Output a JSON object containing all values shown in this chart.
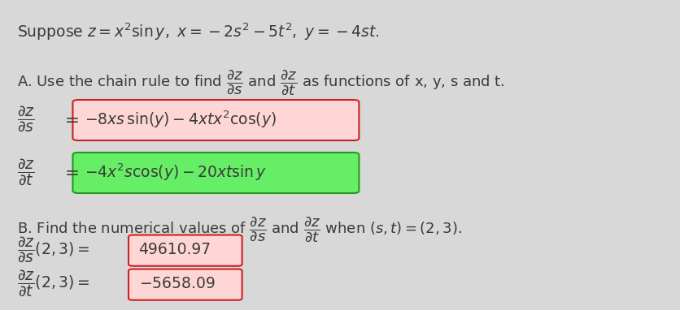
{
  "bg_color": "#d8d8d8",
  "text_color": "#3a3a3a",
  "box1_facecolor": "#ffd6d6",
  "box1_edgecolor": "#cc2222",
  "box2_facecolor": "#66ee66",
  "box2_edgecolor": "#229922",
  "boxval_facecolor": "#ffd6d6",
  "boxval_edgecolor": "#cc2222",
  "line1": "Suppose $z = x^2 \\sin y,\\ x = -2s^2 - 5t^2,\\ y = -4st.$",
  "line2": "A. Use the chain rule to find $\\dfrac{\\partial z}{\\partial s}$ and $\\dfrac{\\partial z}{\\partial t}$ as functions of x, y, s and t.",
  "formula1": "$-8xs\\,\\sin(y) - 4xtx^2\\cos(y)$",
  "formula2": "$-4x^2s\\cos(y) - 20xt\\sin y$",
  "lineB": "B. Find the numerical values of $\\dfrac{\\partial z}{\\partial s}$ and $\\dfrac{\\partial z}{\\partial t}$ when $(s, t) = (2, 3).$",
  "val1": "49610.97",
  "val2": "$-$5658.09"
}
